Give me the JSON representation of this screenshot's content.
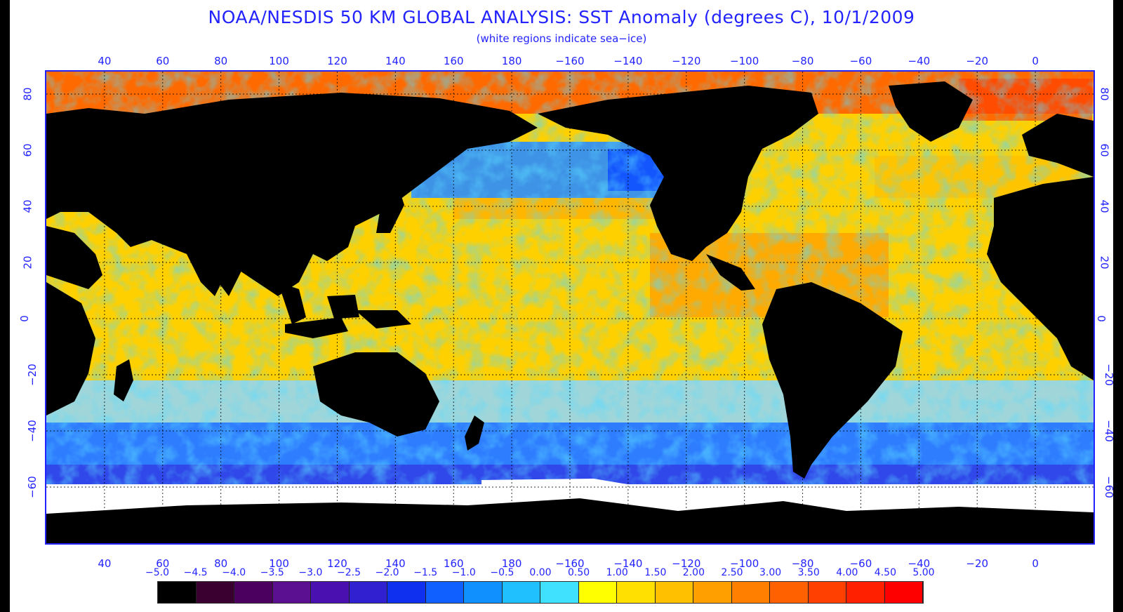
{
  "title": "NOAA/NESDIS 50 KM GLOBAL ANALYSIS: SST Anomaly (degrees C), 10/1/2009",
  "subtitle": "(white regions indicate sea−ice)",
  "map": {
    "projection": "equirectangular",
    "lon_range": [
      20,
      380
    ],
    "lat_range": [
      -80,
      88
    ],
    "longitude_ticks": [
      40,
      60,
      80,
      100,
      120,
      140,
      160,
      180,
      -160,
      -140,
      -120,
      -100,
      -80,
      -60,
      -40,
      -20,
      0
    ],
    "longitude_tick_labels": [
      "40",
      "60",
      "80",
      "100",
      "120",
      "140",
      "160",
      "180",
      "−160",
      "−140",
      "−120",
      "−100",
      "−80",
      "−60",
      "−40",
      "−20",
      "0"
    ],
    "latitude_ticks": [
      80,
      60,
      40,
      20,
      0,
      -20,
      -40,
      -60
    ],
    "latitude_tick_labels": [
      "80",
      "60",
      "40",
      "20",
      "0",
      "−20",
      "−40",
      "−60"
    ],
    "gridlines": true,
    "land_color": "#000000",
    "sea_ice_color": "#ffffff",
    "frame_color": "#2323ff"
  },
  "colorbar": {
    "labels": [
      "−5.0",
      "−4.5",
      "−4.0",
      "−3.5",
      "−3.0",
      "−2.5",
      "−2.0",
      "−1.5",
      "−1.0",
      "−0.5",
      "0.00",
      "0.50",
      "1.00",
      "1.50",
      "2.00",
      "2.50",
      "3.00",
      "3.50",
      "4.00",
      "4.50",
      "5.00"
    ],
    "colors": [
      "#000000",
      "#3a0030",
      "#4b0060",
      "#5a1090",
      "#4a10b0",
      "#3020d0",
      "#1030f0",
      "#1060ff",
      "#1090ff",
      "#20c0ff",
      "#40e0ff",
      "#ffff00",
      "#ffe000",
      "#ffc000",
      "#ffa000",
      "#ff8000",
      "#ff6000",
      "#ff4000",
      "#ff2000",
      "#ff0000"
    ]
  }
}
